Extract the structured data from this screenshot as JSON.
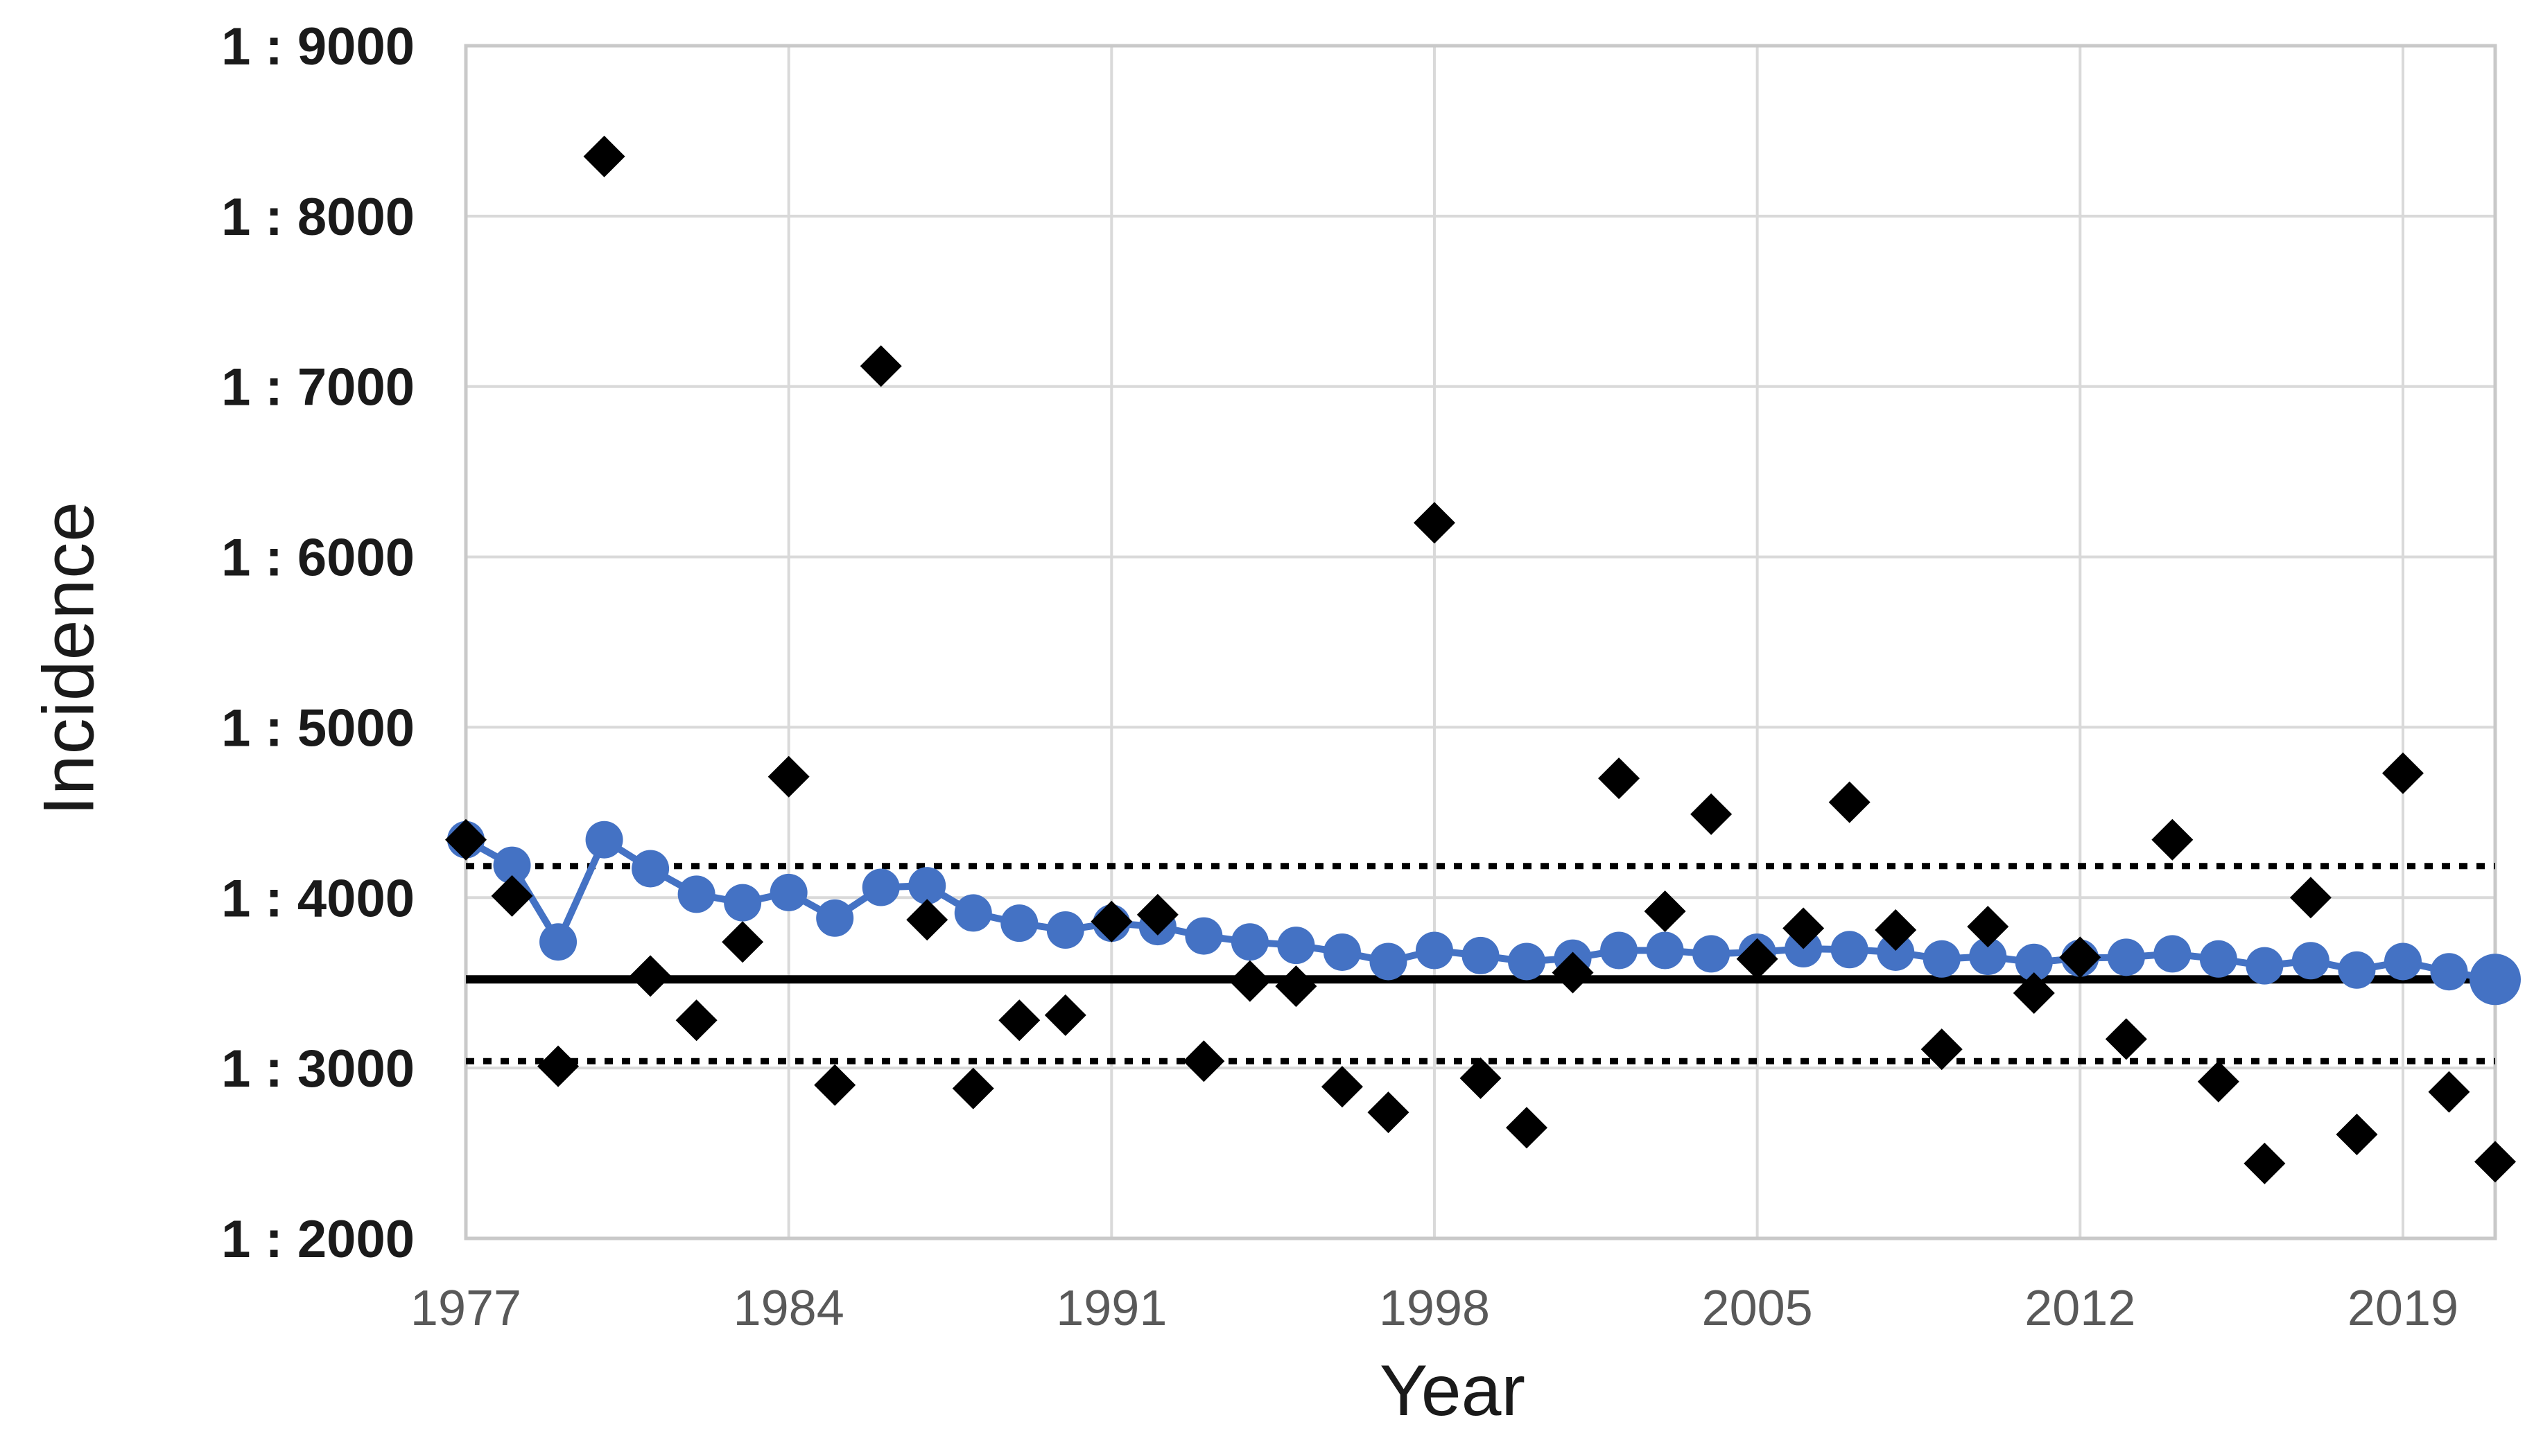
{
  "chart_data": {
    "type": "scatter",
    "title": "",
    "xlabel": "Year",
    "ylabel": "Incidence",
    "xlim": [
      1977,
      2021
    ],
    "ylim": [
      2000,
      9000
    ],
    "grid": true,
    "legend_position": "none",
    "x_ticks": [
      1977,
      1984,
      1991,
      1998,
      2005,
      2012,
      2019
    ],
    "x_tick_labels": [
      "1977",
      "1984",
      "1991",
      "1998",
      "2005",
      "2012",
      "2019"
    ],
    "y_ticks": [
      2000,
      3000,
      4000,
      5000,
      6000,
      7000,
      8000,
      9000
    ],
    "y_tick_labels": [
      "1 : 2000",
      "1 : 3000",
      "1 : 4000",
      "1 : 5000",
      "1 : 6000",
      "1 : 7000",
      "1 : 8000",
      "1 : 9000"
    ],
    "years": [
      1977,
      1978,
      1979,
      1980,
      1981,
      1982,
      1983,
      1984,
      1985,
      1986,
      1987,
      1988,
      1989,
      1990,
      1991,
      1992,
      1993,
      1994,
      1995,
      1996,
      1997,
      1998,
      1999,
      2000,
      2001,
      2002,
      2003,
      2004,
      2005,
      2006,
      2007,
      2008,
      2009,
      2010,
      2011,
      2012,
      2013,
      2014,
      2015,
      2016,
      2017,
      2018,
      2019,
      2020,
      2021
    ],
    "series": [
      {
        "name": "annual-incidence-diamonds",
        "marker": "diamond",
        "color": "#000000",
        "values": [
          4340,
          4010,
          3010,
          8350,
          3540,
          3280,
          3740,
          4710,
          2900,
          7120,
          3870,
          2880,
          3280,
          3310,
          3860,
          3900,
          3040,
          3510,
          3480,
          2890,
          2740,
          6200,
          2940,
          2650,
          3560,
          4700,
          3920,
          4490,
          3640,
          3820,
          4560,
          3810,
          3110,
          3830,
          3440,
          3650,
          3170,
          4340,
          2920,
          2440,
          4000,
          2610,
          4730,
          2860,
          2450
        ]
      },
      {
        "name": "cumulative-incidence-line",
        "marker": "circle",
        "color": "#4472C4",
        "last_point_emphasis": true,
        "values": [
          4340,
          4190,
          3740,
          4340,
          4170,
          4020,
          3970,
          4030,
          3880,
          4060,
          4070,
          3910,
          3850,
          3810,
          3850,
          3830,
          3775,
          3740,
          3720,
          3680,
          3625,
          3690,
          3660,
          3625,
          3645,
          3690,
          3690,
          3670,
          3680,
          3700,
          3695,
          3680,
          3640,
          3655,
          3620,
          3645,
          3650,
          3670,
          3640,
          3600,
          3630,
          3575,
          3625,
          3565,
          3520
        ]
      }
    ],
    "reference_lines": [
      {
        "name": "solid-center-line",
        "value": 3520,
        "style": "solid",
        "color": "#000000"
      },
      {
        "name": "dotted-upper-line",
        "value": 4185,
        "style": "dotted",
        "color": "#000000"
      },
      {
        "name": "dotted-lower-line",
        "value": 3040,
        "style": "dotted",
        "color": "#000000"
      }
    ],
    "colors": {
      "accent_blue": "#4472C4",
      "marker_black": "#000000",
      "gridline": "#D9D9D9",
      "plot_border": "#C9C9C9",
      "x_tick_label": "#595959",
      "y_tick_label": "#1a1a1a",
      "axis_title": "#1a1a1a",
      "background": "#ffffff"
    }
  }
}
